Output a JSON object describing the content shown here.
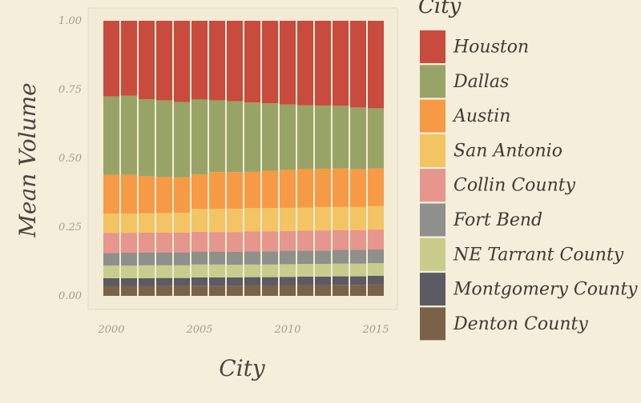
{
  "chart_data": {
    "type": "bar",
    "stacked": "fill",
    "xlabel": "City",
    "ylabel": "Mean Volume",
    "ylim": [
      0,
      1
    ],
    "yticks": [
      "0.00",
      "0.25",
      "0.50",
      "0.75",
      "1.00"
    ],
    "xticks": [
      "2000",
      "2005",
      "2010",
      "2015"
    ],
    "x": [
      2000,
      2001,
      2002,
      2003,
      2004,
      2005,
      2006,
      2007,
      2008,
      2009,
      2010,
      2011,
      2012,
      2013,
      2014,
      2015
    ],
    "legend_title": "City",
    "legend_position": "right",
    "series": [
      {
        "name": "Denton County",
        "color": "#7a6249",
        "values": [
          0.035,
          0.035,
          0.035,
          0.036,
          0.036,
          0.037,
          0.037,
          0.037,
          0.038,
          0.038,
          0.038,
          0.039,
          0.039,
          0.04,
          0.04,
          0.041
        ]
      },
      {
        "name": "Montgomery County",
        "color": "#5c5a63",
        "values": [
          0.029,
          0.029,
          0.029,
          0.029,
          0.029,
          0.03,
          0.03,
          0.03,
          0.03,
          0.03,
          0.031,
          0.031,
          0.031,
          0.031,
          0.031,
          0.032
        ]
      },
      {
        "name": "NE Tarrant County",
        "color": "#c8cd8c",
        "values": [
          0.046,
          0.046,
          0.047,
          0.046,
          0.046,
          0.047,
          0.047,
          0.046,
          0.046,
          0.046,
          0.046,
          0.046,
          0.046,
          0.046,
          0.046,
          0.046
        ]
      },
      {
        "name": "Fort Bend",
        "color": "#8f8f8c",
        "values": [
          0.046,
          0.047,
          0.047,
          0.047,
          0.047,
          0.047,
          0.047,
          0.047,
          0.048,
          0.048,
          0.049,
          0.049,
          0.049,
          0.05,
          0.05,
          0.05
        ]
      },
      {
        "name": "Collin County",
        "color": "#e6968d",
        "values": [
          0.073,
          0.072,
          0.072,
          0.072,
          0.072,
          0.072,
          0.071,
          0.072,
          0.072,
          0.072,
          0.072,
          0.072,
          0.073,
          0.072,
          0.072,
          0.072
        ]
      },
      {
        "name": "San Antonio",
        "color": "#f2c463",
        "values": [
          0.07,
          0.07,
          0.07,
          0.071,
          0.072,
          0.083,
          0.084,
          0.085,
          0.085,
          0.085,
          0.084,
          0.084,
          0.085,
          0.084,
          0.084,
          0.085
        ]
      },
      {
        "name": "Austin",
        "color": "#f79a45",
        "values": [
          0.141,
          0.141,
          0.135,
          0.131,
          0.129,
          0.126,
          0.134,
          0.133,
          0.132,
          0.136,
          0.138,
          0.14,
          0.139,
          0.14,
          0.137,
          0.137
        ]
      },
      {
        "name": "Dallas",
        "color": "#98a466",
        "values": [
          0.285,
          0.288,
          0.28,
          0.279,
          0.274,
          0.272,
          0.261,
          0.258,
          0.252,
          0.245,
          0.238,
          0.232,
          0.23,
          0.228,
          0.225,
          0.219
        ]
      },
      {
        "name": "Houston",
        "color": "#c84b3e",
        "values": [
          0.275,
          0.272,
          0.285,
          0.289,
          0.295,
          0.286,
          0.289,
          0.292,
          0.297,
          0.3,
          0.304,
          0.307,
          0.308,
          0.309,
          0.315,
          0.318
        ]
      }
    ]
  }
}
